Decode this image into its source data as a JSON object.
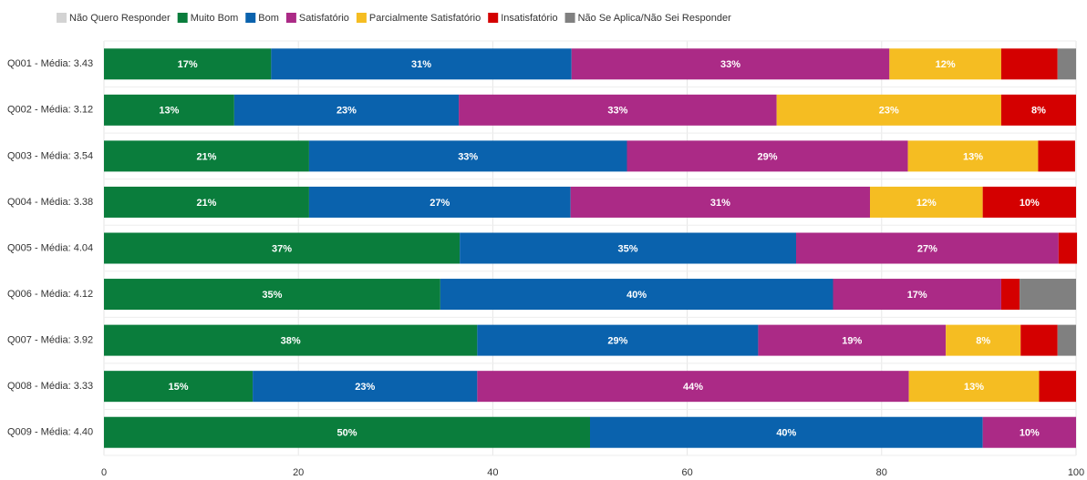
{
  "chart_data": {
    "type": "stacked-barh",
    "categories": [
      "Q001 - Média: 3.43",
      "Q002 - Média: 3.12",
      "Q003 - Média: 3.54",
      "Q004 - Média: 3.38",
      "Q005 - Média: 4.04",
      "Q006 - Média: 4.12",
      "Q007 - Média: 3.92",
      "Q008 - Média: 3.33",
      "Q009 - Média: 4.40"
    ],
    "series": [
      {
        "name": "Não Quero Responder",
        "color": "#d3d3d3",
        "values": [
          0,
          0,
          0,
          0,
          0,
          0,
          0,
          0,
          0
        ],
        "value_labels": [
          null,
          null,
          null,
          null,
          null,
          null,
          null,
          null,
          null
        ]
      },
      {
        "name": "Muito Bom",
        "color": "#0a7d3c",
        "values": [
          17.2,
          13.4,
          21.1,
          21.1,
          36.6,
          34.6,
          38.4,
          15.3,
          50.0
        ],
        "value_labels": [
          "17%",
          "13%",
          "21%",
          "21%",
          "37%",
          "35%",
          "38%",
          "15%",
          "50%"
        ]
      },
      {
        "name": "Bom",
        "color": "#0a62ad",
        "values": [
          30.9,
          23.1,
          32.7,
          26.9,
          34.6,
          40.4,
          28.9,
          23.1,
          40.4
        ],
        "value_labels": [
          "31%",
          "23%",
          "33%",
          "27%",
          "35%",
          "40%",
          "29%",
          "23%",
          "40%"
        ]
      },
      {
        "name": "Satisfatório",
        "color": "#ab2a86",
        "values": [
          32.7,
          32.7,
          28.9,
          30.8,
          27.0,
          17.3,
          19.3,
          44.4,
          9.6
        ],
        "value_labels": [
          "33%",
          "33%",
          "29%",
          "31%",
          "27%",
          "17%",
          "19%",
          "44%",
          "10%"
        ]
      },
      {
        "name": "Parcialmente Satisfatório",
        "color": "#f5bd22",
        "values": [
          11.5,
          23.1,
          13.4,
          11.6,
          0,
          0,
          7.7,
          13.4,
          0
        ],
        "value_labels": [
          "12%",
          "23%",
          "13%",
          "12%",
          null,
          null,
          "8%",
          "13%",
          null
        ]
      },
      {
        "name": "Insatisfatório",
        "color": "#d40000",
        "values": [
          5.8,
          7.7,
          3.8,
          9.6,
          1.9,
          1.9,
          3.8,
          3.8,
          0
        ],
        "value_labels": [
          null,
          "8%",
          null,
          "10%",
          null,
          null,
          null,
          null,
          null
        ]
      },
      {
        "name": "Não Se Aplica/Não Sei Responder",
        "color": "#808080",
        "values": [
          1.9,
          0,
          0,
          0,
          0,
          5.8,
          1.9,
          0,
          0
        ],
        "value_labels": [
          null,
          null,
          null,
          null,
          null,
          null,
          null,
          null,
          null
        ]
      }
    ],
    "xlim": [
      0,
      100
    ],
    "xticks": [
      0,
      20,
      40,
      60,
      80,
      100
    ],
    "grid": true,
    "legend": "top"
  }
}
